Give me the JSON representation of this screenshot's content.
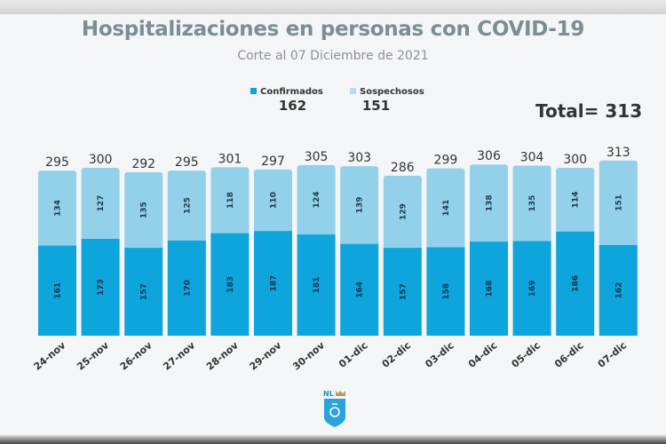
{
  "chart_data": {
    "type": "bar",
    "stacked": true,
    "title": "Hospitalizaciones en personas con COVID-19",
    "subtitle": "Corte al 07 Diciembre de 2021",
    "categories": [
      "24-nov",
      "25-nov",
      "26-nov",
      "27-nov",
      "28-nov",
      "29-nov",
      "30-nov",
      "01-dic",
      "02-dic",
      "03-dic",
      "04-dic",
      "05-dic",
      "06-dic",
      "07-dic"
    ],
    "series": [
      {
        "name": "Confirmados",
        "color": "#0ea5dc",
        "values": [
          161,
          173,
          157,
          170,
          183,
          187,
          181,
          164,
          157,
          158,
          168,
          169,
          186,
          162
        ]
      },
      {
        "name": "Sospechosos",
        "color": "#93d1ea",
        "values": [
          134,
          127,
          135,
          125,
          118,
          110,
          124,
          139,
          129,
          141,
          138,
          135,
          114,
          151
        ]
      }
    ],
    "totals": [
      295,
      300,
      292,
      295,
      301,
      297,
      305,
      303,
      286,
      299,
      306,
      304,
      300,
      313
    ],
    "legend": {
      "position": "top",
      "latest": {
        "confirmados": "162",
        "sospechosos": "151"
      }
    },
    "total_label": "Total= 313",
    "grid": false
  },
  "logo": {
    "text": "NL"
  }
}
